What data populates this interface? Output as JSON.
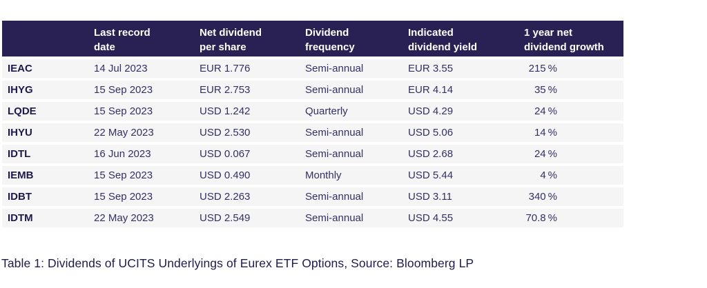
{
  "colors": {
    "header_bg": "#292153",
    "header_text": "#ffffff",
    "row_bg": "#f5f5f6",
    "body_text": "#323063",
    "ticker_text": "#1c1a4a",
    "caption_text": "#1e1b4d",
    "page_bg": "#ffffff"
  },
  "table": {
    "headers": {
      "ticker": "",
      "date": "Last record\ndate",
      "dividend": "Net dividend\nper share",
      "frequency": "Dividend\nfrequency",
      "yield": "Indicated\ndividend yield",
      "growth": "1 year net\ndividend growth"
    },
    "rows": [
      {
        "ticker": "IEAC",
        "date": "14 Jul 2023",
        "dividend": "EUR 1.776",
        "frequency": "Semi-annual",
        "yield": "EUR 3.55",
        "growth": "215 %"
      },
      {
        "ticker": "IHYG",
        "date": "15 Sep 2023",
        "dividend": "EUR 2.753",
        "frequency": "Semi-annual",
        "yield": "EUR 4.14",
        "growth": "35 %"
      },
      {
        "ticker": "LQDE",
        "date": "15 Sep 2023",
        "dividend": "USD 1.242",
        "frequency": "Quarterly",
        "yield": "USD 4.29",
        "growth": "24 %"
      },
      {
        "ticker": "IHYU",
        "date": "22 May 2023",
        "dividend": "USD 2.530",
        "frequency": "Semi-annual",
        "yield": "USD 5.06",
        "growth": "14 %"
      },
      {
        "ticker": "IDTL",
        "date": "16 Jun 2023",
        "dividend": "USD 0.067",
        "frequency": "Semi-annual",
        "yield": "USD 2.68",
        "growth": "24 %"
      },
      {
        "ticker": "IEMB",
        "date": "15 Sep 2023",
        "dividend": "USD 0.490",
        "frequency": "Monthly",
        "yield": "USD 5.44",
        "growth": "4 %"
      },
      {
        "ticker": "IDBT",
        "date": "15 Sep 2023",
        "dividend": "USD 2.263",
        "frequency": "Semi-annual",
        "yield": "USD 3.11",
        "growth": "340 %"
      },
      {
        "ticker": "IDTM",
        "date": "22 May 2023",
        "dividend": "USD 2.549",
        "frequency": "Semi-annual",
        "yield": "USD 4.55",
        "growth": "70.8 %"
      }
    ]
  },
  "caption": "Table 1: Dividends of UCITS Underlyings of Eurex ETF Options, Source: Bloomberg LP"
}
